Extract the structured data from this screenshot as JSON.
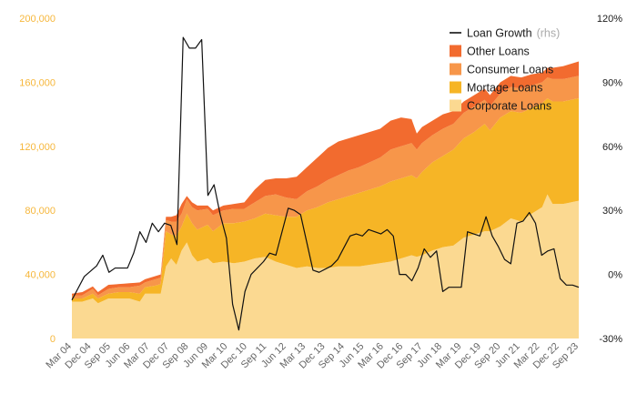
{
  "chart_data": {
    "type": "area",
    "stacked": true,
    "title": "",
    "xlabel": "",
    "ylabel": "",
    "ylim": [
      0,
      200000
    ],
    "y2lim": [
      -30,
      120
    ],
    "y_ticks": [
      "0",
      "40,000",
      "80,000",
      "120,000",
      "160,000",
      "200,000"
    ],
    "y2_ticks": [
      "-30%",
      "0%",
      "30%",
      "60%",
      "90%",
      "120%"
    ],
    "x_tick_labels": [
      "Mar 04",
      "Dec 04",
      "Sep 05",
      "Jun 06",
      "Mar 07",
      "Dec 07",
      "Sep 08",
      "Jun 09",
      "Mar 10",
      "Dec 10",
      "Sep 11",
      "Jun 12",
      "Mar 13",
      "Dec 13",
      "Sep 14",
      "Jun 15",
      "Mar 16",
      "Dec 16",
      "Sep 17",
      "Jun 18",
      "Mar 19",
      "Dec 19",
      "Sep 20",
      "Jun 21",
      "Mar 22",
      "Dec 22",
      "Sep 23"
    ],
    "legend": {
      "position": "top-right",
      "items": [
        {
          "key": "growth",
          "label": "Loan Growth",
          "note": "(rhs)",
          "color": "#111111",
          "kind": "line"
        },
        {
          "key": "other",
          "label": "Other Loans",
          "color": "#f26b2f",
          "kind": "area"
        },
        {
          "key": "consumer",
          "label": "Consumer Loans",
          "color": "#f7964a",
          "kind": "area"
        },
        {
          "key": "mortgage",
          "label": "Mortage Loans",
          "color": "#f6b526",
          "kind": "area"
        },
        {
          "key": "corporate",
          "label": "Corporate Loans",
          "color": "#fbd991",
          "kind": "area"
        }
      ]
    },
    "stack_order": [
      "corporate",
      "mortgage",
      "consumer",
      "other"
    ],
    "stack_keypoints": [
      {
        "t": 0,
        "corporate": 23000,
        "mortgage": 2000,
        "consumer": 2000,
        "other": 1000
      },
      {
        "t": 2,
        "corporate": 23000,
        "mortgage": 2000,
        "consumer": 2000,
        "other": 2000
      },
      {
        "t": 4,
        "corporate": 25000,
        "mortgage": 3000,
        "consumer": 3000,
        "other": 1500
      },
      {
        "t": 5,
        "corporate": 22000,
        "mortgage": 3000,
        "consumer": 2000,
        "other": 2000
      },
      {
        "t": 7,
        "corporate": 25000,
        "mortgage": 3000,
        "consumer": 3000,
        "other": 2500
      },
      {
        "t": 9,
        "corporate": 25000,
        "mortgage": 4000,
        "consumer": 3000,
        "other": 2000
      },
      {
        "t": 11,
        "corporate": 25000,
        "mortgage": 4000,
        "consumer": 3000,
        "other": 2500
      },
      {
        "t": 13,
        "corporate": 23000,
        "mortgage": 5000,
        "consumer": 5000,
        "other": 2000
      },
      {
        "t": 14,
        "corporate": 28000,
        "mortgage": 4000,
        "consumer": 3000,
        "other": 2000
      },
      {
        "t": 16,
        "corporate": 28000,
        "mortgage": 5000,
        "consumer": 4000,
        "other": 2000
      },
      {
        "t": 17,
        "corporate": 28000,
        "mortgage": 6000,
        "consumer": 4000,
        "other": 2000
      },
      {
        "t": 18,
        "corporate": 45000,
        "mortgage": 22000,
        "consumer": 7000,
        "other": 2000
      },
      {
        "t": 19,
        "corporate": 50000,
        "mortgage": 15000,
        "consumer": 8000,
        "other": 3000
      },
      {
        "t": 20,
        "corporate": 46000,
        "mortgage": 18000,
        "consumer": 9000,
        "other": 4000
      },
      {
        "t": 21,
        "corporate": 55000,
        "mortgage": 15000,
        "consumer": 8000,
        "other": 6000
      },
      {
        "t": 22,
        "corporate": 60000,
        "mortgage": 18000,
        "consumer": 9000,
        "other": 2000
      },
      {
        "t": 23,
        "corporate": 52000,
        "mortgage": 20000,
        "consumer": 10000,
        "other": 3000
      },
      {
        "t": 24,
        "corporate": 48000,
        "mortgage": 20000,
        "consumer": 12000,
        "other": 3000
      },
      {
        "t": 26,
        "corporate": 50000,
        "mortgage": 21000,
        "consumer": 10000,
        "other": 2000
      },
      {
        "t": 27,
        "corporate": 47000,
        "mortgage": 20000,
        "consumer": 10000,
        "other": 3000
      },
      {
        "t": 29,
        "corporate": 48000,
        "mortgage": 24000,
        "consumer": 8000,
        "other": 3000
      },
      {
        "t": 31,
        "corporate": 47000,
        "mortgage": 25000,
        "consumer": 9000,
        "other": 3000
      },
      {
        "t": 33,
        "corporate": 48000,
        "mortgage": 25000,
        "consumer": 8000,
        "other": 4000
      },
      {
        "t": 35,
        "corporate": 50000,
        "mortgage": 25000,
        "consumer": 10000,
        "other": 8000
      },
      {
        "t": 37,
        "corporate": 51000,
        "mortgage": 27000,
        "consumer": 11000,
        "other": 10000
      },
      {
        "t": 39,
        "corporate": 48000,
        "mortgage": 29000,
        "consumer": 13000,
        "other": 10000
      },
      {
        "t": 41,
        "corporate": 46000,
        "mortgage": 30000,
        "consumer": 12000,
        "other": 12000
      },
      {
        "t": 43,
        "corporate": 44000,
        "mortgage": 32000,
        "consumer": 11000,
        "other": 14000
      },
      {
        "t": 45,
        "corporate": 45000,
        "mortgage": 35000,
        "consumer": 12000,
        "other": 15000
      },
      {
        "t": 47,
        "corporate": 44000,
        "mortgage": 38000,
        "consumer": 13000,
        "other": 18000
      },
      {
        "t": 49,
        "corporate": 44000,
        "mortgage": 41000,
        "consumer": 14000,
        "other": 20000
      },
      {
        "t": 51,
        "corporate": 45000,
        "mortgage": 42000,
        "consumer": 15000,
        "other": 21000
      },
      {
        "t": 53,
        "corporate": 45000,
        "mortgage": 44000,
        "consumer": 16000,
        "other": 20000
      },
      {
        "t": 55,
        "corporate": 45000,
        "mortgage": 46000,
        "consumer": 16000,
        "other": 20000
      },
      {
        "t": 57,
        "corporate": 46000,
        "mortgage": 47000,
        "consumer": 17000,
        "other": 19000
      },
      {
        "t": 59,
        "corporate": 47000,
        "mortgage": 48000,
        "consumer": 18000,
        "other": 18000
      },
      {
        "t": 61,
        "corporate": 48000,
        "mortgage": 50000,
        "consumer": 20000,
        "other": 18000
      },
      {
        "t": 63,
        "corporate": 50000,
        "mortgage": 50000,
        "consumer": 20000,
        "other": 18000
      },
      {
        "t": 65,
        "corporate": 52000,
        "mortgage": 50000,
        "consumer": 20000,
        "other": 15000
      },
      {
        "t": 66,
        "corporate": 51000,
        "mortgage": 49000,
        "consumer": 18000,
        "other": 10000
      },
      {
        "t": 67,
        "corporate": 52000,
        "mortgage": 52000,
        "consumer": 18000,
        "other": 10000
      },
      {
        "t": 69,
        "corporate": 55000,
        "mortgage": 55000,
        "consumer": 17000,
        "other": 9000
      },
      {
        "t": 71,
        "corporate": 57000,
        "mortgage": 57000,
        "consumer": 17000,
        "other": 9000
      },
      {
        "t": 73,
        "corporate": 58000,
        "mortgage": 60000,
        "consumer": 16000,
        "other": 8000
      },
      {
        "t": 75,
        "corporate": 63000,
        "mortgage": 62000,
        "consumer": 16000,
        "other": 7000
      },
      {
        "t": 77,
        "corporate": 65000,
        "mortgage": 64000,
        "consumer": 16000,
        "other": 7000
      },
      {
        "t": 79,
        "corporate": 67000,
        "mortgage": 67000,
        "consumer": 15000,
        "other": 7000
      },
      {
        "t": 80,
        "corporate": 67000,
        "mortgage": 63000,
        "consumer": 15000,
        "other": 7000
      },
      {
        "t": 82,
        "corporate": 70000,
        "mortgage": 68000,
        "consumer": 15000,
        "other": 7000
      },
      {
        "t": 84,
        "corporate": 75000,
        "mortgage": 67000,
        "consumer": 15000,
        "other": 7000
      },
      {
        "t": 86,
        "corporate": 73000,
        "mortgage": 68000,
        "consumer": 15000,
        "other": 7000
      },
      {
        "t": 88,
        "corporate": 78000,
        "mortgage": 66000,
        "consumer": 14000,
        "other": 7000
      },
      {
        "t": 90,
        "corporate": 82000,
        "mortgage": 65000,
        "consumer": 13000,
        "other": 6000
      },
      {
        "t": 91,
        "corporate": 90000,
        "mortgage": 60000,
        "consumer": 13000,
        "other": 6000
      },
      {
        "t": 92,
        "corporate": 84000,
        "mortgage": 64000,
        "consumer": 14000,
        "other": 7000
      },
      {
        "t": 94,
        "corporate": 84000,
        "mortgage": 64000,
        "consumer": 14000,
        "other": 8000
      },
      {
        "t": 97,
        "corporate": 86000,
        "mortgage": 64000,
        "consumer": 14000,
        "other": 9000
      }
    ],
    "growth_keypoints": [
      {
        "t": 0,
        "v": -12
      },
      {
        "t": 2,
        "v": -1
      },
      {
        "t": 4,
        "v": 4
      },
      {
        "t": 5,
        "v": 9
      },
      {
        "t": 6,
        "v": 1
      },
      {
        "t": 7,
        "v": 3
      },
      {
        "t": 9,
        "v": 3
      },
      {
        "t": 10,
        "v": 10
      },
      {
        "t": 11,
        "v": 20
      },
      {
        "t": 12,
        "v": 15
      },
      {
        "t": 13,
        "v": 24
      },
      {
        "t": 14,
        "v": 20
      },
      {
        "t": 15,
        "v": 24
      },
      {
        "t": 16,
        "v": 23
      },
      {
        "t": 17,
        "v": 14
      },
      {
        "t": 18,
        "v": 111
      },
      {
        "t": 19,
        "v": 106
      },
      {
        "t": 20,
        "v": 106
      },
      {
        "t": 21,
        "v": 110
      },
      {
        "t": 22,
        "v": 37
      },
      {
        "t": 23,
        "v": 42
      },
      {
        "t": 24,
        "v": 28
      },
      {
        "t": 25,
        "v": 17
      },
      {
        "t": 26,
        "v": -14
      },
      {
        "t": 27,
        "v": -26
      },
      {
        "t": 28,
        "v": -8
      },
      {
        "t": 29,
        "v": 0
      },
      {
        "t": 31,
        "v": 6
      },
      {
        "t": 32,
        "v": 10
      },
      {
        "t": 33,
        "v": 9
      },
      {
        "t": 35,
        "v": 31
      },
      {
        "t": 36,
        "v": 30
      },
      {
        "t": 37,
        "v": 28
      },
      {
        "t": 38,
        "v": 15
      },
      {
        "t": 39,
        "v": 2
      },
      {
        "t": 40,
        "v": 1
      },
      {
        "t": 42,
        "v": 4
      },
      {
        "t": 43,
        "v": 7
      },
      {
        "t": 45,
        "v": 18
      },
      {
        "t": 46,
        "v": 19
      },
      {
        "t": 47,
        "v": 18
      },
      {
        "t": 48,
        "v": 21
      },
      {
        "t": 50,
        "v": 19
      },
      {
        "t": 51,
        "v": 21
      },
      {
        "t": 52,
        "v": 18
      },
      {
        "t": 53,
        "v": 0
      },
      {
        "t": 54,
        "v": 0
      },
      {
        "t": 55,
        "v": -3
      },
      {
        "t": 56,
        "v": 3
      },
      {
        "t": 57,
        "v": 12
      },
      {
        "t": 58,
        "v": 8
      },
      {
        "t": 59,
        "v": 11
      },
      {
        "t": 60,
        "v": -8
      },
      {
        "t": 61,
        "v": -6
      },
      {
        "t": 62,
        "v": -6
      },
      {
        "t": 63,
        "v": -6
      },
      {
        "t": 64,
        "v": 20
      },
      {
        "t": 65,
        "v": 19
      },
      {
        "t": 66,
        "v": 18
      },
      {
        "t": 67,
        "v": 27
      },
      {
        "t": 68,
        "v": 18
      },
      {
        "t": 69,
        "v": 13
      },
      {
        "t": 70,
        "v": 7
      },
      {
        "t": 71,
        "v": 5
      },
      {
        "t": 72,
        "v": 24
      },
      {
        "t": 73,
        "v": 25
      },
      {
        "t": 74,
        "v": 29
      },
      {
        "t": 75,
        "v": 24
      },
      {
        "t": 76,
        "v": 9
      },
      {
        "t": 77,
        "v": 11
      },
      {
        "t": 78,
        "v": 12
      },
      {
        "t": 79,
        "v": -2
      },
      {
        "t": 80,
        "v": -5
      },
      {
        "t": 81,
        "v": -5
      },
      {
        "t": 82,
        "v": -6
      }
    ],
    "t_max": 97,
    "growth_t_scale": 1.1829
  }
}
